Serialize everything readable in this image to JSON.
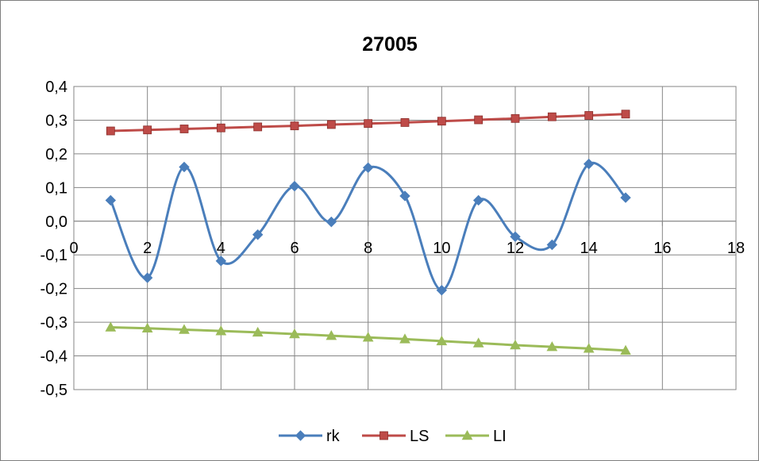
{
  "chart_data": {
    "type": "line",
    "title": "27005",
    "xlabel": "",
    "ylabel": "",
    "xlim": [
      0,
      18
    ],
    "ylim": [
      -0.5,
      0.4
    ],
    "x_ticks": [
      0,
      2,
      4,
      6,
      8,
      10,
      12,
      14,
      16,
      18
    ],
    "y_ticks": [
      "0,4",
      "0,3",
      "0,2",
      "0,1",
      "0,0",
      "-0,1",
      "-0,2",
      "-0,3",
      "-0,4",
      "-0,5"
    ],
    "y_tick_values": [
      0.4,
      0.3,
      0.2,
      0.1,
      0.0,
      -0.1,
      -0.2,
      -0.3,
      -0.4,
      -0.5
    ],
    "grid": true,
    "legend_position": "bottom",
    "series": [
      {
        "name": "rk",
        "color": "#4a7ebb",
        "marker": "diamond",
        "smooth": true,
        "x": [
          1,
          2,
          3,
          4,
          5,
          6,
          7,
          8,
          9,
          10,
          11,
          12,
          13,
          14,
          15
        ],
        "values": [
          0.062,
          -0.168,
          0.161,
          -0.118,
          -0.04,
          0.104,
          -0.002,
          0.159,
          0.075,
          -0.205,
          0.062,
          -0.046,
          -0.07,
          0.17,
          0.07
        ]
      },
      {
        "name": "LS",
        "color": "#be4b48",
        "marker": "square",
        "smooth": false,
        "x": [
          1,
          2,
          3,
          4,
          5,
          6,
          7,
          8,
          9,
          10,
          11,
          12,
          13,
          14,
          15
        ],
        "values": [
          0.268,
          0.271,
          0.274,
          0.277,
          0.28,
          0.283,
          0.287,
          0.29,
          0.293,
          0.297,
          0.301,
          0.305,
          0.31,
          0.314,
          0.318
        ]
      },
      {
        "name": "LI",
        "color": "#9bbb59",
        "marker": "triangle",
        "smooth": false,
        "x": [
          1,
          2,
          3,
          4,
          5,
          6,
          7,
          8,
          9,
          10,
          11,
          12,
          13,
          14,
          15
        ],
        "values": [
          -0.315,
          -0.318,
          -0.322,
          -0.326,
          -0.33,
          -0.335,
          -0.34,
          -0.345,
          -0.35,
          -0.356,
          -0.362,
          -0.368,
          -0.373,
          -0.378,
          -0.384
        ]
      }
    ]
  }
}
